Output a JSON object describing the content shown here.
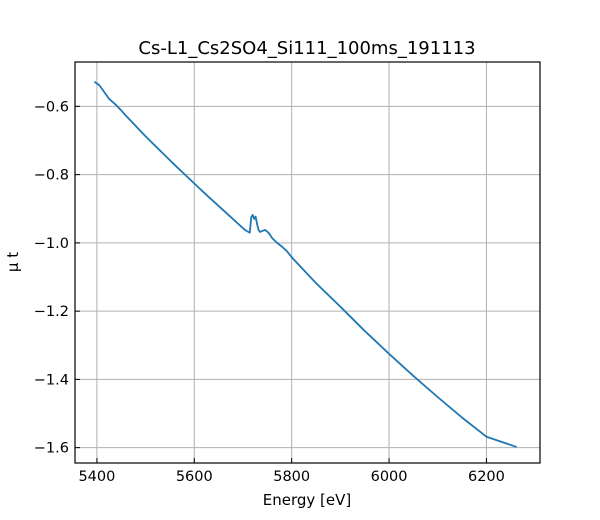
{
  "chart_data": {
    "type": "line",
    "title": "Cs-L1_Cs2SO4_Si111_100ms_191113",
    "xlabel": "Energy [eV]",
    "ylabel": "μ t",
    "xlim": [
      5355,
      6310
    ],
    "ylim": [
      -1.645,
      -0.47
    ],
    "xticks": [
      5400,
      5600,
      5800,
      6000,
      6200
    ],
    "yticks": [
      -0.6,
      -0.8,
      -1.0,
      -1.2,
      -1.4,
      -1.6
    ],
    "xtick_labels": [
      "5400",
      "5600",
      "5800",
      "6000",
      "6200"
    ],
    "ytick_labels": [
      "−0.6",
      "−0.8",
      "−1.0",
      "−1.2",
      "−1.4",
      "−1.6"
    ],
    "grid": true,
    "series": [
      {
        "color": "#1f77b4",
        "x": [
          5395,
          5405,
          5415,
          5425,
          5440,
          5450,
          5460,
          5480,
          5500,
          5520,
          5540,
          5560,
          5580,
          5600,
          5620,
          5640,
          5660,
          5680,
          5690,
          5700,
          5705,
          5710,
          5714,
          5717,
          5720,
          5723,
          5726,
          5729,
          5732,
          5735,
          5740,
          5745,
          5750,
          5755,
          5760,
          5770,
          5780,
          5790,
          5800,
          5850,
          5900,
          5950,
          6000,
          6050,
          6100,
          6150,
          6200,
          6262
        ],
        "y": [
          -0.528,
          -0.538,
          -0.558,
          -0.578,
          -0.597,
          -0.612,
          -0.628,
          -0.658,
          -0.688,
          -0.716,
          -0.744,
          -0.772,
          -0.799,
          -0.826,
          -0.853,
          -0.879,
          -0.905,
          -0.931,
          -0.944,
          -0.957,
          -0.963,
          -0.967,
          -0.97,
          -0.925,
          -0.918,
          -0.93,
          -0.923,
          -0.945,
          -0.962,
          -0.968,
          -0.965,
          -0.962,
          -0.967,
          -0.975,
          -0.986,
          -1.0,
          -1.011,
          -1.024,
          -1.042,
          -1.118,
          -1.187,
          -1.258,
          -1.325,
          -1.39,
          -1.452,
          -1.512,
          -1.568,
          -1.598
        ]
      }
    ]
  }
}
